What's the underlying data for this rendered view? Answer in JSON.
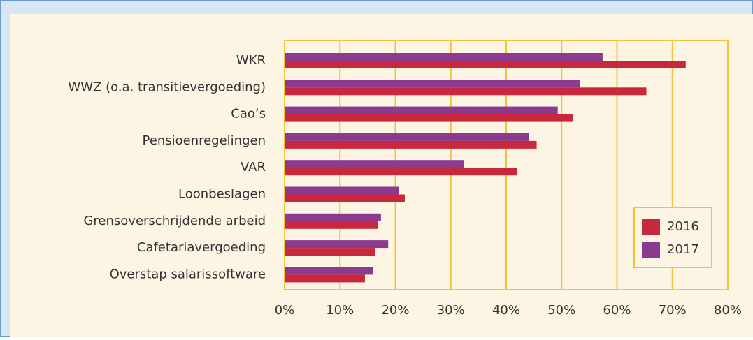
{
  "chart_data": {
    "type": "bar",
    "orientation": "horizontal",
    "categories": [
      "WKR",
      "WWZ (o.a. transitievergoeding)",
      "Cao’s",
      "Pensioenregelingen",
      "VAR",
      "Loonbeslagen",
      "Grensoverschrijdende arbeid",
      "Cafetariavergoeding",
      "Overstap salarissoftware"
    ],
    "series": [
      {
        "name": "2016",
        "color": "#c8283c",
        "values": [
          72.4,
          65.3,
          52.1,
          45.5,
          41.9,
          21.7,
          16.8,
          16.4,
          14.5
        ]
      },
      {
        "name": "2017",
        "color": "#8b3a8f",
        "values": [
          57.4,
          53.3,
          49.3,
          44.1,
          32.3,
          20.6,
          17.4,
          18.7,
          16.0
        ]
      }
    ],
    "xlim": [
      0,
      80
    ],
    "xticks": [
      {
        "value": 0,
        "label": "0%"
      },
      {
        "value": 10,
        "label": "10%"
      },
      {
        "value": 20,
        "label": "20%"
      },
      {
        "value": 30,
        "label": "30%"
      },
      {
        "value": 40,
        "label": "40%"
      },
      {
        "value": 50,
        "label": "50%"
      },
      {
        "value": 60,
        "label": "60%"
      },
      {
        "value": 70,
        "label": "70%"
      },
      {
        "value": 80,
        "label": "80%"
      }
    ],
    "grid": true,
    "legend": "lower right"
  }
}
